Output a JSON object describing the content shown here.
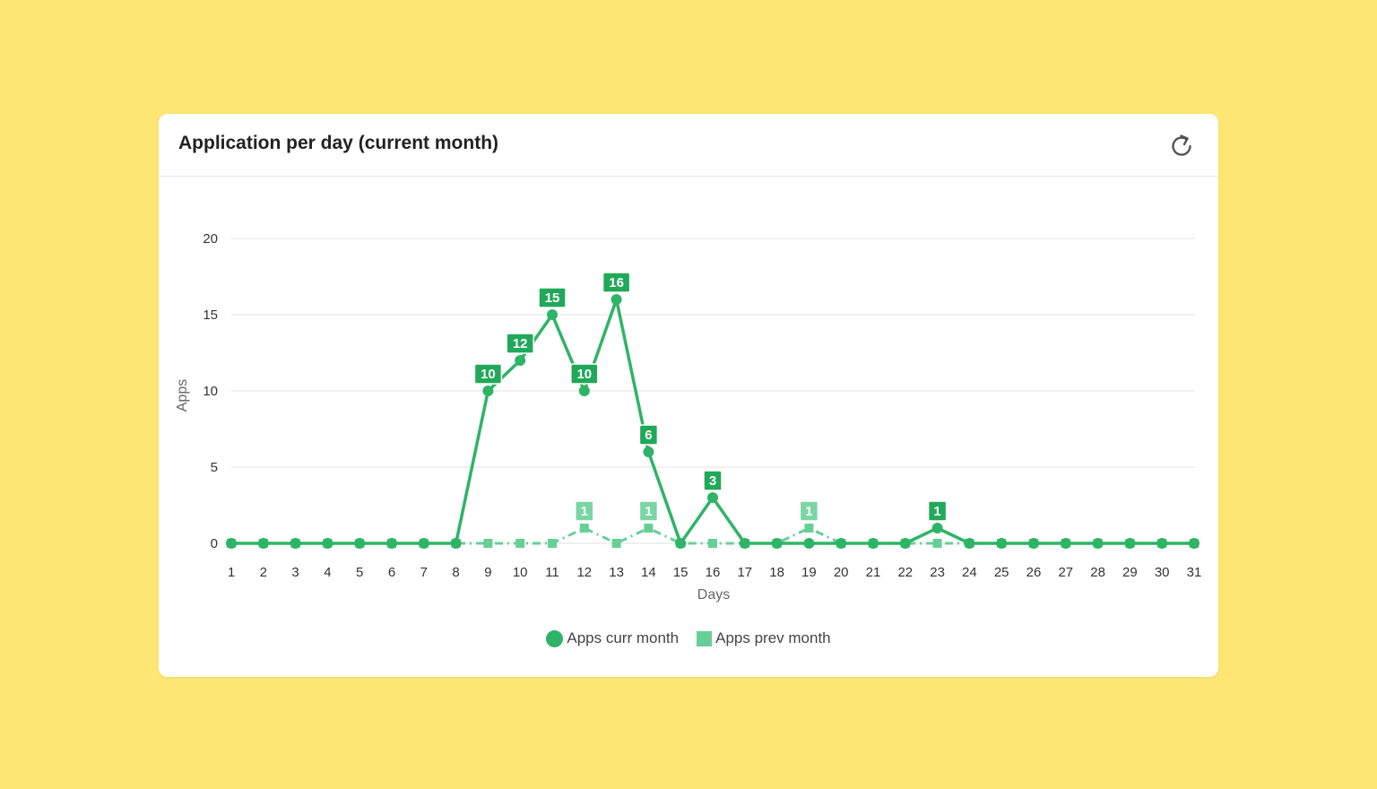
{
  "card": {
    "title": "Application per day (current month)"
  },
  "icons": {
    "refresh": "refresh-icon"
  },
  "colors": {
    "curr": "#2eb466",
    "prev": "#66cf98",
    "curr_label_bg": "#22a85a",
    "prev_label_bg": "#79d6a4",
    "grid": "#e6e6e6",
    "background": "#fde674"
  },
  "chart_data": {
    "type": "line",
    "xlabel": "Days",
    "ylabel": "Apps",
    "ylim": [
      0,
      20
    ],
    "yticks": [
      0,
      5,
      10,
      15,
      20
    ],
    "categories": [
      "1",
      "2",
      "3",
      "4",
      "5",
      "6",
      "7",
      "8",
      "9",
      "10",
      "11",
      "12",
      "13",
      "14",
      "15",
      "16",
      "17",
      "18",
      "19",
      "20",
      "21",
      "22",
      "23",
      "24",
      "25",
      "26",
      "27",
      "28",
      "29",
      "30",
      "31"
    ],
    "series": [
      {
        "name": "Apps curr month",
        "marker": "circle",
        "values": [
          0,
          0,
          0,
          0,
          0,
          0,
          0,
          0,
          10,
          12,
          15,
          10,
          16,
          6,
          0,
          3,
          0,
          0,
          0,
          0,
          0,
          0,
          1,
          0,
          0,
          0,
          0,
          0,
          0,
          0,
          0
        ]
      },
      {
        "name": "Apps prev month",
        "marker": "square",
        "values": [
          0,
          0,
          0,
          0,
          0,
          0,
          0,
          0,
          0,
          0,
          0,
          1,
          0,
          1,
          0,
          0,
          0,
          0,
          1,
          0,
          0,
          0,
          0,
          0,
          0,
          0,
          0,
          0,
          0,
          0,
          0
        ]
      }
    ],
    "legend_position": "bottom-center",
    "grid": true
  }
}
